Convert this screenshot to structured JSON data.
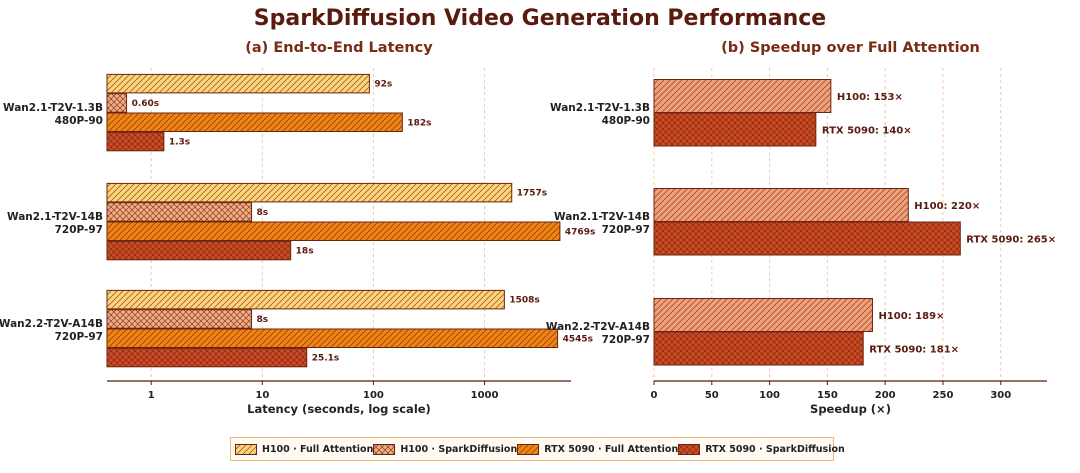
{
  "title": "SparkDiffusion Video Generation Performance",
  "legend": [
    {
      "label": "H100 · Full Attention",
      "color": "#fdd477",
      "pattern": "diag"
    },
    {
      "label": "H100 · SparkDiffusion",
      "color": "#f2ad83",
      "pattern": "cross"
    },
    {
      "label": "RTX 5090 · Full Attention",
      "color": "#f08312",
      "pattern": "diag"
    },
    {
      "label": "RTX 5090 · SparkDiffusion",
      "color": "#cf4a22",
      "pattern": "cross"
    }
  ],
  "chart_data": [
    {
      "type": "bar",
      "orientation": "horizontal",
      "title": "(a) End-to-End Latency",
      "xlabel": "Latency (seconds, log scale)",
      "xscale": "log",
      "xlim": [
        0.4,
        6000
      ],
      "xticks": [
        1,
        10,
        100,
        1000
      ],
      "grid": true,
      "categories": [
        [
          "Wan2.1-T2V-1.3B",
          "480P-90"
        ],
        [
          "Wan2.1-T2V-14B",
          "720P-97"
        ],
        [
          "Wan2.2-T2V-A14B",
          "720P-97"
        ]
      ],
      "series": [
        {
          "name": "H100 · Full Attention",
          "values": [
            92,
            1757,
            1508
          ],
          "labels": [
            "92s",
            "1757s",
            "1508s"
          ]
        },
        {
          "name": "H100 · SparkDiffusion",
          "values": [
            0.6,
            8,
            8
          ],
          "labels": [
            "0.60s",
            "8s",
            "8s"
          ]
        },
        {
          "name": "RTX 5090 · Full Attention",
          "values": [
            182,
            4769,
            4545
          ],
          "labels": [
            "182s",
            "4769s",
            "4545s"
          ]
        },
        {
          "name": "RTX 5090 · SparkDiffusion",
          "values": [
            1.3,
            18,
            25.1
          ],
          "labels": [
            "1.3s",
            "18s",
            "25.1s"
          ]
        }
      ]
    },
    {
      "type": "bar",
      "orientation": "horizontal",
      "title": "(b) Speedup over Full Attention",
      "xlabel": "Speedup (×)",
      "xlim": [
        0,
        340
      ],
      "xticks": [
        0,
        50,
        100,
        150,
        200,
        250,
        300
      ],
      "grid": true,
      "categories": [
        [
          "Wan2.1-T2V-1.3B",
          "480P-90"
        ],
        [
          "Wan2.1-T2V-14B",
          "720P-97"
        ],
        [
          "Wan2.2-T2V-A14B",
          "720P-97"
        ]
      ],
      "series": [
        {
          "name": "H100",
          "values": [
            153,
            220,
            189
          ],
          "labels": [
            "H100: 153×",
            "H100: 220×",
            "H100: 189×"
          ]
        },
        {
          "name": "RTX 5090",
          "values": [
            140,
            265,
            181
          ],
          "labels": [
            "RTX 5090: 140×",
            "RTX 5090: 265×",
            "RTX 5090: 181×"
          ]
        }
      ]
    }
  ]
}
